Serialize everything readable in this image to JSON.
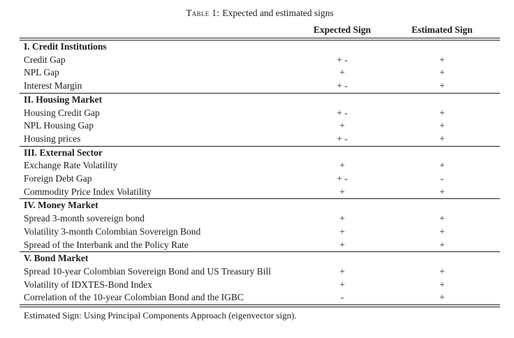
{
  "title": {
    "prefix": "Table 1:",
    "text": "Expected and estimated signs"
  },
  "columns": {
    "indicator": "",
    "expected": "Expected Sign",
    "estimated": "Estimated Sign"
  },
  "sections": [
    {
      "name": "I. Credit Institutions",
      "rows": [
        {
          "label": "Credit Gap",
          "expected": "+ -",
          "estimated": "+"
        },
        {
          "label": "NPL Gap",
          "expected": "+",
          "estimated": "+"
        },
        {
          "label": "Interest Margin",
          "expected": "+ -",
          "estimated": "+"
        }
      ]
    },
    {
      "name": "II. Housing Market",
      "rows": [
        {
          "label": "Housing Credit Gap",
          "expected": "+ -",
          "estimated": "+"
        },
        {
          "label": "NPL Housing Gap",
          "expected": "+",
          "estimated": "+"
        },
        {
          "label": "Housing prices",
          "expected": "+ -",
          "estimated": "+"
        }
      ]
    },
    {
      "name": "III. External Sector",
      "rows": [
        {
          "label": "Exchange Rate Volatility",
          "expected": "+",
          "estimated": "+"
        },
        {
          "label": "Foreign Debt Gap",
          "expected": "+ -",
          "estimated": "-"
        },
        {
          "label": "Commodity Price Index Volatility",
          "expected": "+",
          "estimated": "+"
        }
      ]
    },
    {
      "name": "IV. Money Market",
      "rows": [
        {
          "label": "Spread 3-month sovereign bond",
          "expected": "+",
          "estimated": "+"
        },
        {
          "label": "Volatility 3-month Colombian Sovereign Bond",
          "expected": "+",
          "estimated": "+"
        },
        {
          "label": "Spread of the Interbank and the Policy Rate",
          "expected": "+",
          "estimated": "+"
        }
      ]
    },
    {
      "name": "V. Bond Market",
      "rows": [
        {
          "label": "Spread 10-year Colombian Sovereign Bond and US Treasury Bill",
          "expected": "+",
          "estimated": "+"
        },
        {
          "label": "Volatility of IDXTES-Bond Index",
          "expected": "+",
          "estimated": "+"
        },
        {
          "label": "Correlation of the 10-year Colombian Bond and the IGBC",
          "expected": "-",
          "estimated": "+"
        }
      ]
    }
  ],
  "footnote": "Estimated Sign: Using Principal Components Approach (eigenvector sign).",
  "colors": {
    "text": "#1b1b24",
    "rule": "#1b1b24",
    "background": "#ffffff"
  }
}
